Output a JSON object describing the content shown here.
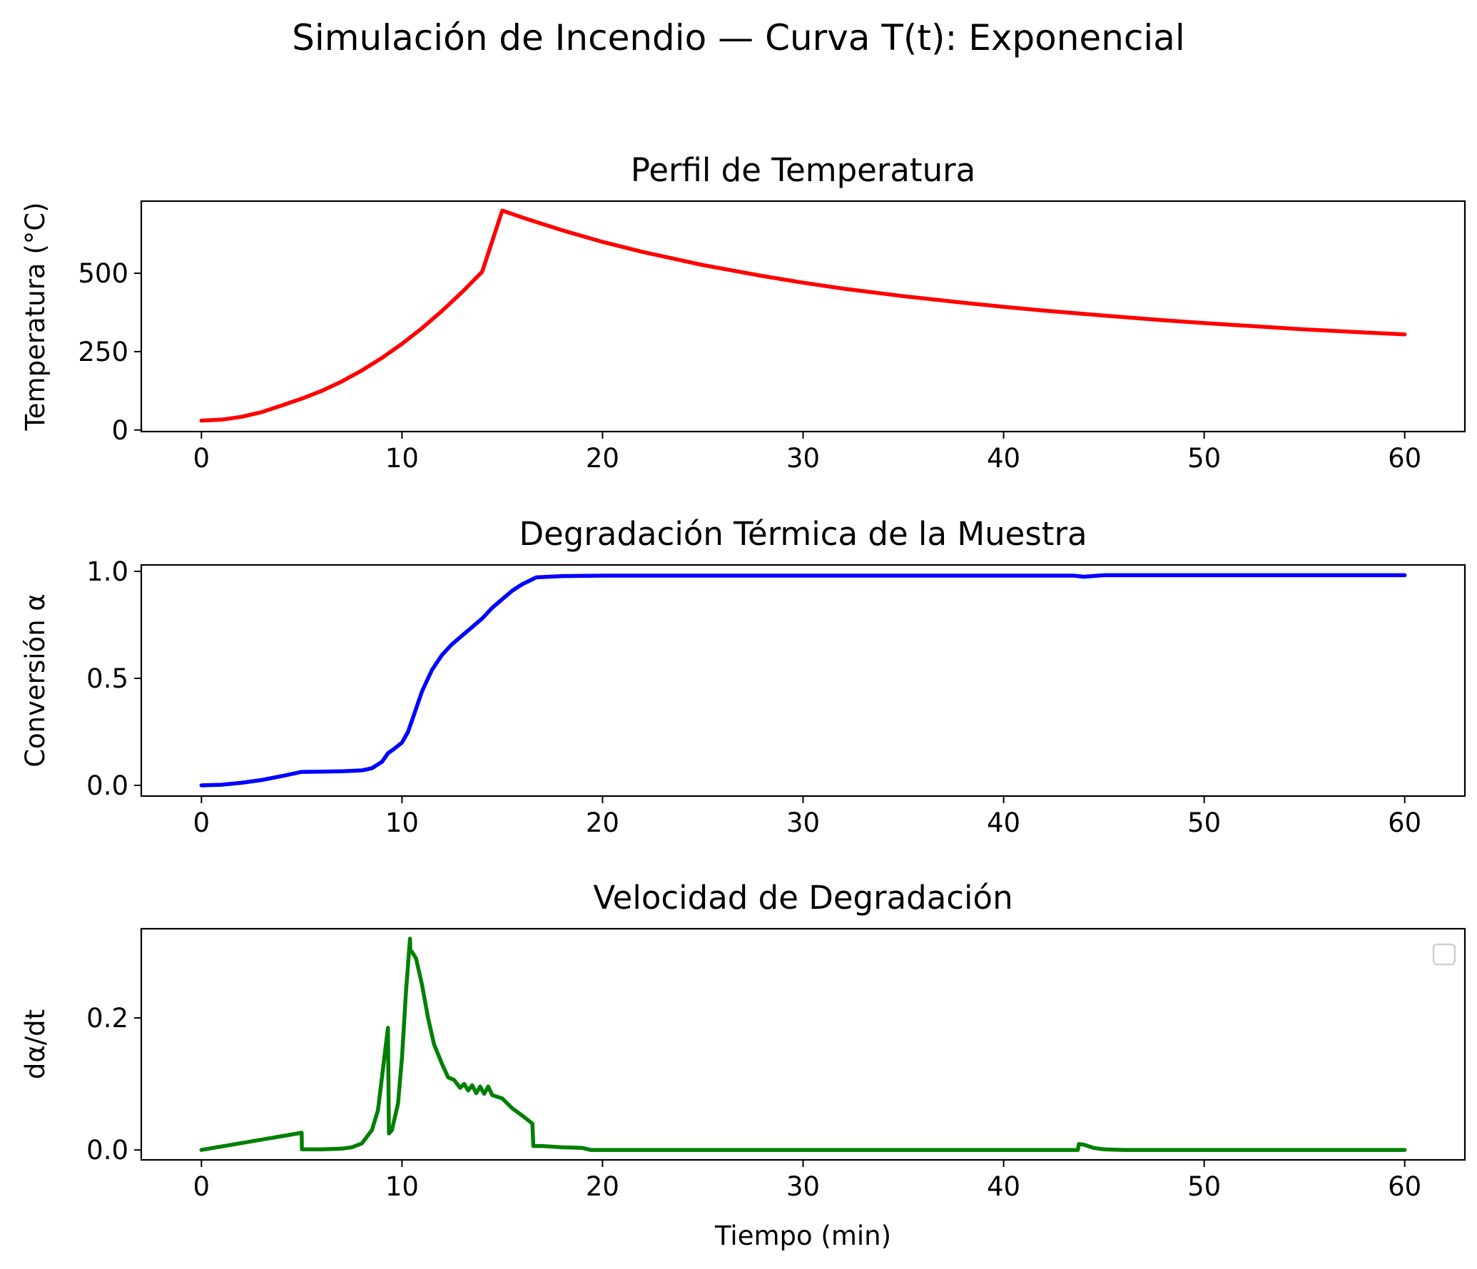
{
  "figure": {
    "suptitle": "Simulación de Incendio — Curva T(t): Exponencial"
  },
  "chart_data": [
    {
      "type": "line",
      "title": "Perfil de Temperatura",
      "xlabel": "",
      "ylabel": "Temperatura (°C)",
      "xlim": [
        -3,
        63
      ],
      "ylim": [
        -5,
        730
      ],
      "xticks": [
        0,
        10,
        20,
        30,
        40,
        50,
        60
      ],
      "xtick_labels": [
        "0",
        "10",
        "20",
        "30",
        "40",
        "50",
        "60"
      ],
      "yticks": [
        0,
        250,
        500
      ],
      "ytick_labels": [
        "0",
        "250",
        "500"
      ],
      "grid": false,
      "series": [
        {
          "color": "#ff0000",
          "x": [
            0,
            1,
            2,
            3,
            4,
            5,
            6,
            7,
            8,
            9,
            10,
            11,
            12,
            13,
            14,
            15,
            16,
            18,
            20,
            22,
            25,
            28,
            30,
            32,
            35,
            38,
            40,
            42,
            45,
            48,
            50,
            52,
            55,
            58,
            60
          ],
          "y": [
            30,
            33,
            42,
            57,
            78,
            100,
            125,
            155,
            190,
            230,
            275,
            325,
            380,
            440,
            505,
            700,
            678,
            637,
            600,
            568,
            526,
            491,
            470,
            451,
            427,
            406,
            393,
            381,
            365,
            350,
            341,
            333,
            321,
            311,
            305
          ]
        }
      ]
    },
    {
      "type": "line",
      "title": "Degradación Térmica de la Muestra",
      "xlabel": "",
      "ylabel": "Conversión α",
      "xlim": [
        -3,
        63
      ],
      "ylim": [
        -0.05,
        1.03
      ],
      "xticks": [
        0,
        10,
        20,
        30,
        40,
        50,
        60
      ],
      "xtick_labels": [
        "0",
        "10",
        "20",
        "30",
        "40",
        "50",
        "60"
      ],
      "yticks": [
        0,
        0.5,
        1.0
      ],
      "ytick_labels": [
        "0.0",
        "0.5",
        "1.0"
      ],
      "grid": false,
      "series": [
        {
          "color": "#0000ff",
          "x": [
            0,
            1,
            2,
            3,
            4,
            5,
            6,
            7,
            8,
            8.5,
            9,
            9.3,
            9.6,
            10,
            10.3,
            10.6,
            11,
            11.5,
            12,
            12.5,
            13,
            13.5,
            14,
            14.5,
            15,
            15.5,
            16,
            16.7,
            18,
            20,
            25,
            30,
            35,
            40,
            43.5,
            44,
            45,
            50,
            55,
            60
          ],
          "y": [
            0.0,
            0.003,
            0.012,
            0.025,
            0.043,
            0.063,
            0.064,
            0.066,
            0.07,
            0.08,
            0.11,
            0.15,
            0.17,
            0.2,
            0.25,
            0.33,
            0.44,
            0.54,
            0.61,
            0.66,
            0.7,
            0.74,
            0.78,
            0.83,
            0.87,
            0.91,
            0.94,
            0.972,
            0.978,
            0.98,
            0.98,
            0.98,
            0.98,
            0.98,
            0.98,
            0.975,
            0.982,
            0.982,
            0.982,
            0.982
          ]
        }
      ]
    },
    {
      "type": "line",
      "title": "Velocidad de Degradación",
      "xlabel": "Tiempo (min)",
      "ylabel": "dα/dt",
      "xlim": [
        -3,
        63
      ],
      "ylim": [
        -0.015,
        0.335
      ],
      "xticks": [
        0,
        10,
        20,
        30,
        40,
        50,
        60
      ],
      "xtick_labels": [
        "0",
        "10",
        "20",
        "30",
        "40",
        "50",
        "60"
      ],
      "yticks": [
        0,
        0.2
      ],
      "ytick_labels": [
        "0.0",
        "0.2"
      ],
      "grid": false,
      "legend": "top-right (empty)",
      "series": [
        {
          "color": "#008000",
          "x": [
            0,
            5,
            5.01,
            6,
            7,
            7.5,
            8,
            8.5,
            8.8,
            9.0,
            9.2,
            9.3,
            9.35,
            9.5,
            9.8,
            10.0,
            10.2,
            10.4,
            10.42,
            10.5,
            10.7,
            11.0,
            11.3,
            11.6,
            12.0,
            12.3,
            12.6,
            12.9,
            13.1,
            13.3,
            13.5,
            13.7,
            13.9,
            14.1,
            14.3,
            14.5,
            15.0,
            15.5,
            16.0,
            16.5,
            16.55,
            17.0,
            18.0,
            19.0,
            19.4,
            20,
            25,
            30,
            35,
            40,
            43.7,
            43.75,
            44.0,
            44.5,
            45.0,
            46,
            50,
            55,
            60
          ],
          "y": [
            0.0,
            0.026,
            0.001,
            0.001,
            0.002,
            0.004,
            0.01,
            0.03,
            0.06,
            0.11,
            0.16,
            0.185,
            0.025,
            0.03,
            0.07,
            0.14,
            0.24,
            0.32,
            0.3,
            0.3,
            0.29,
            0.25,
            0.2,
            0.16,
            0.13,
            0.11,
            0.106,
            0.094,
            0.1,
            0.09,
            0.098,
            0.086,
            0.096,
            0.085,
            0.096,
            0.083,
            0.078,
            0.063,
            0.052,
            0.04,
            0.006,
            0.006,
            0.004,
            0.003,
            0.0,
            0.0,
            0.0,
            0.0,
            0.0,
            0.0,
            0.0,
            0.009,
            0.008,
            0.003,
            0.001,
            0.0,
            0.0,
            0.0,
            0.0
          ]
        }
      ]
    }
  ]
}
